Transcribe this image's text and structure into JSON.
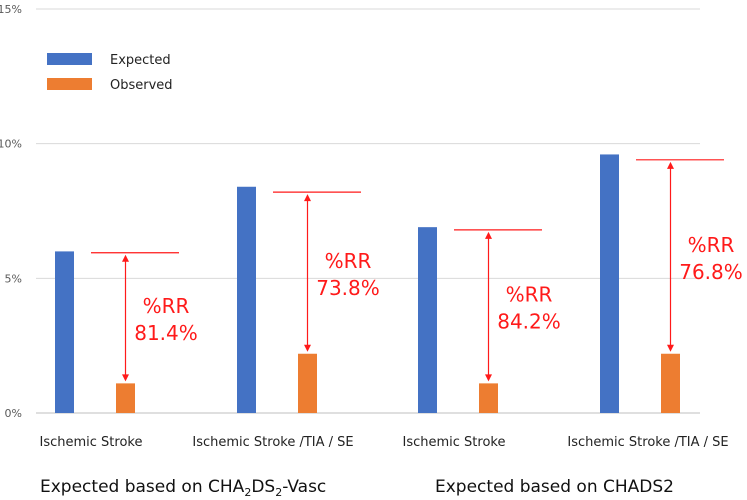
{
  "chart_data": {
    "type": "bar",
    "title": "",
    "xlabel": "",
    "ylabel": "",
    "ylim": [
      0,
      15
    ],
    "y_ticks": [
      {
        "value": 0,
        "label": "0%"
      },
      {
        "value": 5,
        "label": "5%"
      },
      {
        "value": 10,
        "label": "10%"
      },
      {
        "value": 15,
        "label": "15%"
      }
    ],
    "grid": true,
    "legend_position": "top-left",
    "categories": [
      "Ischemic Stroke",
      "Ischemic Stroke /TIA / SE",
      "Ischemic Stroke",
      "Ischemic Stroke /TIA / SE"
    ],
    "series": [
      {
        "name": "Expected",
        "color": "#4472c4",
        "values": [
          6.0,
          8.4,
          6.9,
          9.6
        ]
      },
      {
        "name": "Observed",
        "color": "#ed7d31",
        "values": [
          1.1,
          2.2,
          1.1,
          2.2
        ]
      }
    ],
    "groups": [
      {
        "base": "Expected based on CHA",
        "sub1": "2",
        "mid": "DS",
        "sub2": "2",
        "tail": "-Vasc"
      },
      {
        "label": "Expected based on CHADS2"
      }
    ],
    "annotations": [
      {
        "label": "%RR",
        "value": "81.4%",
        "line_level": 5.95
      },
      {
        "label": "%RR",
        "value": "73.8%",
        "line_level": 8.2
      },
      {
        "label": "%RR",
        "value": "84.2%",
        "line_level": 6.8
      },
      {
        "label": "%RR",
        "value": "76.8%",
        "line_level": 9.4
      }
    ],
    "annotation_color": "#ff1a1a"
  }
}
